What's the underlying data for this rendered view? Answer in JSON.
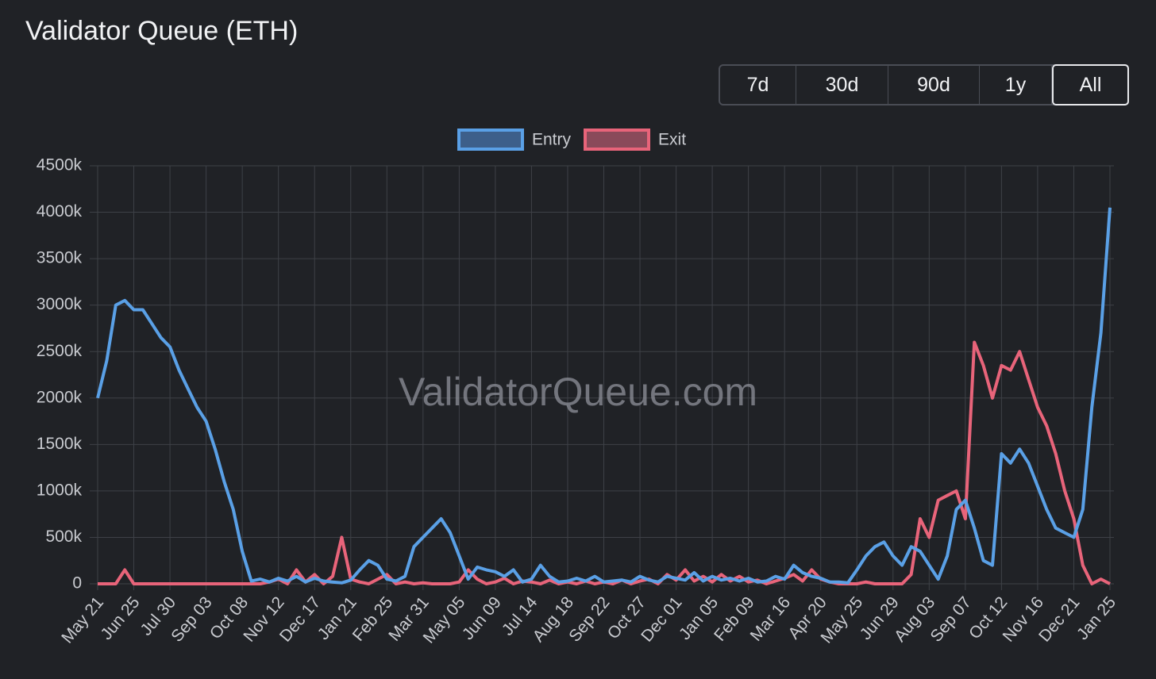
{
  "title": "Validator Queue (ETH)",
  "range_buttons": [
    "7d",
    "30d",
    "90d",
    "1y",
    "All"
  ],
  "selected_range": "All",
  "chart_data": {
    "type": "line",
    "watermark": "ValidatorQueue.com",
    "legend_position": "top",
    "grid": true,
    "categories": [
      "May 21",
      null,
      null,
      null,
      "Jun 25",
      null,
      null,
      null,
      "Jul 30",
      null,
      null,
      null,
      "Sep 03",
      null,
      null,
      null,
      "Oct 08",
      null,
      null,
      null,
      "Nov 12",
      null,
      null,
      null,
      "Dec 17",
      null,
      null,
      null,
      "Jan 21",
      null,
      null,
      null,
      "Feb 25",
      null,
      null,
      null,
      "Mar 31",
      null,
      null,
      null,
      "May 05",
      null,
      null,
      null,
      "Jun 09",
      null,
      null,
      null,
      "Jul 14",
      null,
      null,
      null,
      "Aug 18",
      null,
      null,
      null,
      "Sep 22",
      null,
      null,
      null,
      "Oct 27",
      null,
      null,
      null,
      "Dec 01",
      null,
      null,
      null,
      "Jan 05",
      null,
      null,
      null,
      "Feb 09",
      null,
      null,
      null,
      "Mar 16",
      null,
      null,
      null,
      "Apr 20",
      null,
      null,
      null,
      "May 25",
      null,
      null,
      null,
      "Jun 29",
      null,
      null,
      null,
      "Aug 03",
      null,
      null,
      null,
      "Sep 07",
      null,
      null,
      null,
      "Oct 12",
      null,
      null,
      null,
      "Nov 16",
      null,
      null,
      null,
      "Dec 21",
      null,
      null,
      null,
      "Jan 25"
    ],
    "ylim": [
      0,
      4500000
    ],
    "yticks": [
      0,
      {
        "value": 500000,
        "label": "500k"
      },
      {
        "value": 1000000,
        "label": "1000k"
      },
      {
        "value": 1500000,
        "label": "1500k"
      },
      {
        "value": 2000000,
        "label": "2000k"
      },
      {
        "value": 2500000,
        "label": "2500k"
      },
      {
        "value": 3000000,
        "label": "3000k"
      },
      {
        "value": 3500000,
        "label": "3500k"
      },
      {
        "value": 4000000,
        "label": "4000k"
      },
      {
        "value": 4500000,
        "label": "4500k"
      }
    ],
    "series": [
      {
        "name": "Entry",
        "color": "#5aa0e6",
        "fill": "#3d5f8a",
        "values": [
          2000000,
          2400000,
          3000000,
          3050000,
          2950000,
          2950000,
          2800000,
          2650000,
          2550000,
          2300000,
          2100000,
          1900000,
          1750000,
          1450000,
          1100000,
          800000,
          350000,
          30000,
          50000,
          20000,
          60000,
          30000,
          80000,
          20000,
          60000,
          30000,
          20000,
          10000,
          40000,
          150000,
          250000,
          200000,
          50000,
          30000,
          80000,
          400000,
          500000,
          600000,
          700000,
          550000,
          300000,
          50000,
          180000,
          150000,
          130000,
          80000,
          150000,
          20000,
          50000,
          200000,
          80000,
          20000,
          30000,
          60000,
          30000,
          80000,
          20000,
          30000,
          40000,
          20000,
          80000,
          40000,
          20000,
          80000,
          60000,
          40000,
          120000,
          30000,
          80000,
          40000,
          60000,
          30000,
          60000,
          20000,
          30000,
          80000,
          50000,
          200000,
          120000,
          80000,
          60000,
          20000,
          20000,
          10000,
          150000,
          300000,
          400000,
          450000,
          300000,
          200000,
          400000,
          350000,
          200000,
          50000,
          300000,
          800000,
          900000,
          600000,
          250000,
          200000,
          1400000,
          1300000,
          1450000,
          1300000,
          1050000,
          800000,
          600000,
          550000,
          500000,
          800000,
          1900000,
          2700000,
          4050000
        ]
      },
      {
        "name": "Exit",
        "color": "#e8647a",
        "fill": "#8a4a5a",
        "values": [
          0,
          0,
          0,
          150000,
          0,
          0,
          0,
          0,
          0,
          0,
          0,
          0,
          0,
          0,
          0,
          0,
          0,
          0,
          0,
          20000,
          50000,
          0,
          150000,
          20000,
          100000,
          0,
          80000,
          500000,
          50000,
          20000,
          0,
          50000,
          100000,
          0,
          20000,
          0,
          10000,
          0,
          0,
          0,
          20000,
          150000,
          50000,
          0,
          20000,
          60000,
          0,
          30000,
          20000,
          0,
          40000,
          0,
          20000,
          0,
          30000,
          0,
          20000,
          0,
          40000,
          0,
          30000,
          50000,
          0,
          100000,
          40000,
          150000,
          30000,
          80000,
          20000,
          100000,
          30000,
          80000,
          20000,
          40000,
          0,
          30000,
          60000,
          100000,
          30000,
          150000,
          50000,
          20000,
          0,
          0,
          0,
          20000,
          0,
          0,
          0,
          0,
          100000,
          700000,
          500000,
          900000,
          950000,
          1000000,
          700000,
          2600000,
          2350000,
          2000000,
          2350000,
          2300000,
          2500000,
          2200000,
          1900000,
          1700000,
          1400000,
          1000000,
          700000,
          200000,
          0,
          50000,
          0
        ]
      }
    ]
  }
}
